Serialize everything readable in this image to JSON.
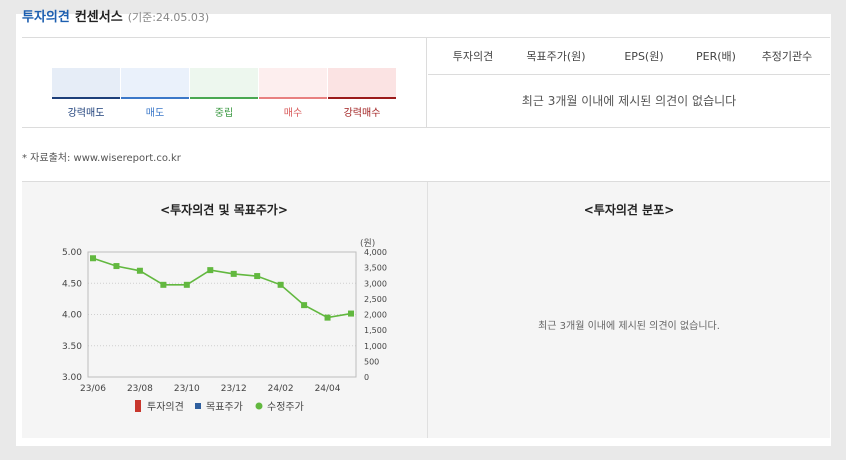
{
  "header": {
    "title_accent": "투자의견",
    "title_main": "컨센서스",
    "date": "(기준:24.05.03)"
  },
  "scale": {
    "items": [
      {
        "label": "강력매도",
        "bg": "#e6edf7",
        "bar": "#1d3f7a",
        "text": "#1d3f7a"
      },
      {
        "label": "매도",
        "bg": "#eaf1fb",
        "bar": "#3b78c9",
        "text": "#3b78c9"
      },
      {
        "label": "중립",
        "bg": "#edf7ee",
        "bar": "#4aa851",
        "text": "#3d9a44"
      },
      {
        "label": "매수",
        "bg": "#fdeeee",
        "bar": "#e88080",
        "text": "#d85a5a"
      },
      {
        "label": "강력매수",
        "bg": "#fbe3e3",
        "bar": "#9b1b1b",
        "text": "#a01f1f"
      }
    ]
  },
  "table": {
    "columns": [
      "투자의견",
      "목표주가(원)",
      "EPS(원)",
      "PER(배)",
      "추정기관수"
    ],
    "empty_message": "최근 3개월 이내에 제시된 의견이 없습니다"
  },
  "source": "* 자료출처: www.wisereport.co.kr",
  "chart_section": {
    "title": "<투자의견 및 목표주가>"
  },
  "distribution_section": {
    "title": "<투자의견 분포>",
    "empty_message": "최근 3개월 이내에 제시된 의견이 없습니다."
  },
  "colors": {
    "accent": "#1d5fb0",
    "modified_price_line": "#62b83f"
  },
  "chart_data": {
    "type": "line",
    "x_ticks": [
      "23/06",
      "23/08",
      "23/10",
      "23/12",
      "24/02",
      "24/04"
    ],
    "y_left": {
      "ylim": [
        3.0,
        5.0
      ],
      "ticks": [
        "5.00",
        "4.50",
        "4.00",
        "3.50",
        "3.00"
      ]
    },
    "y_right": {
      "unit": "(원)",
      "ylim": [
        0,
        4000
      ],
      "ticks": [
        "4,000",
        "3,500",
        "3,000",
        "2,500",
        "2,000",
        "1,500",
        "1,000",
        "500",
        "0"
      ]
    },
    "legend": [
      {
        "name": "투자의견",
        "color": "#c8372d",
        "shape": "bar"
      },
      {
        "name": "목표주가",
        "color": "#2f5f9e",
        "shape": "square"
      },
      {
        "name": "수정주가",
        "color": "#62b83f",
        "shape": "dot"
      }
    ],
    "series": [
      {
        "name": "수정주가",
        "axis": "right",
        "color": "#62b83f",
        "points": [
          {
            "x": "2023-06",
            "y": 3800
          },
          {
            "x": "2023-07",
            "y": 3550
          },
          {
            "x": "2023-08",
            "y": 3400
          },
          {
            "x": "2023-09",
            "y": 2950
          },
          {
            "x": "2023-10",
            "y": 2950
          },
          {
            "x": "2023-11",
            "y": 3420
          },
          {
            "x": "2023-12",
            "y": 3300
          },
          {
            "x": "2024-01",
            "y": 3230
          },
          {
            "x": "2024-02",
            "y": 2950
          },
          {
            "x": "2024-03",
            "y": 2300
          },
          {
            "x": "2024-04",
            "y": 1900
          },
          {
            "x": "2024-05",
            "y": 2030
          }
        ]
      }
    ]
  }
}
